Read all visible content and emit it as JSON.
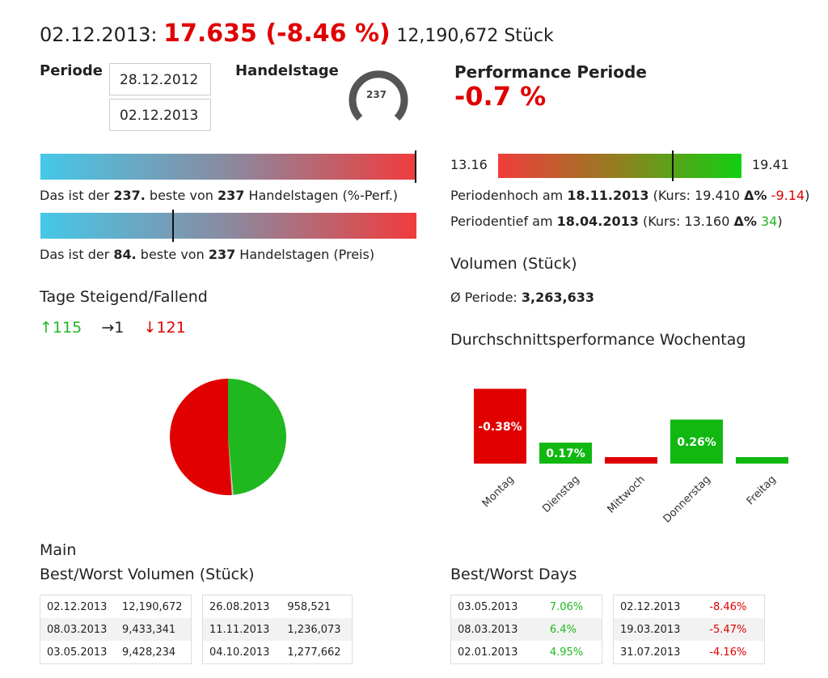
{
  "header": {
    "date": "02.12.2013:",
    "price": "17.635 (-8.46 %)",
    "volume": "12,190,672 Stück"
  },
  "periode": {
    "label": "Periode",
    "from": "28.12.2012",
    "to": "02.12.2013"
  },
  "handelstage": {
    "label": "Handelstage",
    "value": "237",
    "fraction": 1.0
  },
  "performance": {
    "label": "Performance Periode",
    "value": "-0.7 %"
  },
  "rank_perf": {
    "pre": "Das ist der ",
    "rank": "237.",
    "mid": " beste von ",
    "total": "237",
    "post": " Handelstagen (%-Perf.)",
    "fraction": 1.0
  },
  "rank_price": {
    "pre": "Das ist der ",
    "rank": "84.",
    "mid": " beste von ",
    "total": "237",
    "post": " Handelstagen (Preis)",
    "fraction": 0.354
  },
  "range": {
    "low": "13.16",
    "high": "19.41",
    "current_fraction": 0.69
  },
  "hoch": {
    "pre": "Periodenhoch am ",
    "date": "18.11.2013",
    "mid": " (Kurs: 19.410 ",
    "delta": "Δ%",
    "val": "-9.14",
    "post": ")"
  },
  "tief": {
    "pre": "Periodentief am ",
    "date": "18.04.2013",
    "mid": " (Kurs: 13.160 ",
    "delta": "Δ%",
    "val": "34",
    "post": ")"
  },
  "volumen": {
    "title": "Volumen (Stück)",
    "avg_label": "Ø Periode: ",
    "avg": "3,263,633"
  },
  "tage": {
    "title": "Tage Steigend/Fallend",
    "up": "↑115",
    "flat": "→1",
    "down": "↓121"
  },
  "chart_data": [
    {
      "type": "pie",
      "slices": [
        {
          "name": "Steigend",
          "value": 115,
          "color": "#1fb81f"
        },
        {
          "name": "Gleich",
          "value": 1,
          "color": "#cccccc"
        },
        {
          "name": "Fallend",
          "value": 121,
          "color": "#e00000"
        }
      ]
    },
    {
      "type": "bar",
      "title": "Durchschnittsperformance Wochentag",
      "categories": [
        "Montag",
        "Dienstag",
        "Mittwoch",
        "Donnerstag",
        "Freitag"
      ],
      "values": [
        -0.38,
        0.17,
        -0.02,
        0.26,
        0.02
      ],
      "labels": [
        "-0.38%",
        "0.17%",
        "",
        "0.26%",
        ""
      ]
    }
  ],
  "main_label": "Main",
  "best_worst_vol": {
    "title": "Best/Worst Volumen (Stück)",
    "left": [
      [
        "02.12.2013",
        "12,190,672"
      ],
      [
        "08.03.2013",
        "9,433,341"
      ],
      [
        "03.05.2013",
        "9,428,234"
      ]
    ],
    "right": [
      [
        "26.08.2013",
        "958,521"
      ],
      [
        "11.11.2013",
        "1,236,073"
      ],
      [
        "04.10.2013",
        "1,277,662"
      ]
    ]
  },
  "best_worst_days": {
    "title": "Best/Worst Days",
    "left": [
      [
        "03.05.2013",
        "7.06%"
      ],
      [
        "08.03.2013",
        "6.4%"
      ],
      [
        "02.01.2013",
        "4.95%"
      ]
    ],
    "right": [
      [
        "02.12.2013",
        "-8.46%"
      ],
      [
        "19.03.2013",
        "-5.47%"
      ],
      [
        "31.07.2013",
        "-4.16%"
      ]
    ]
  }
}
